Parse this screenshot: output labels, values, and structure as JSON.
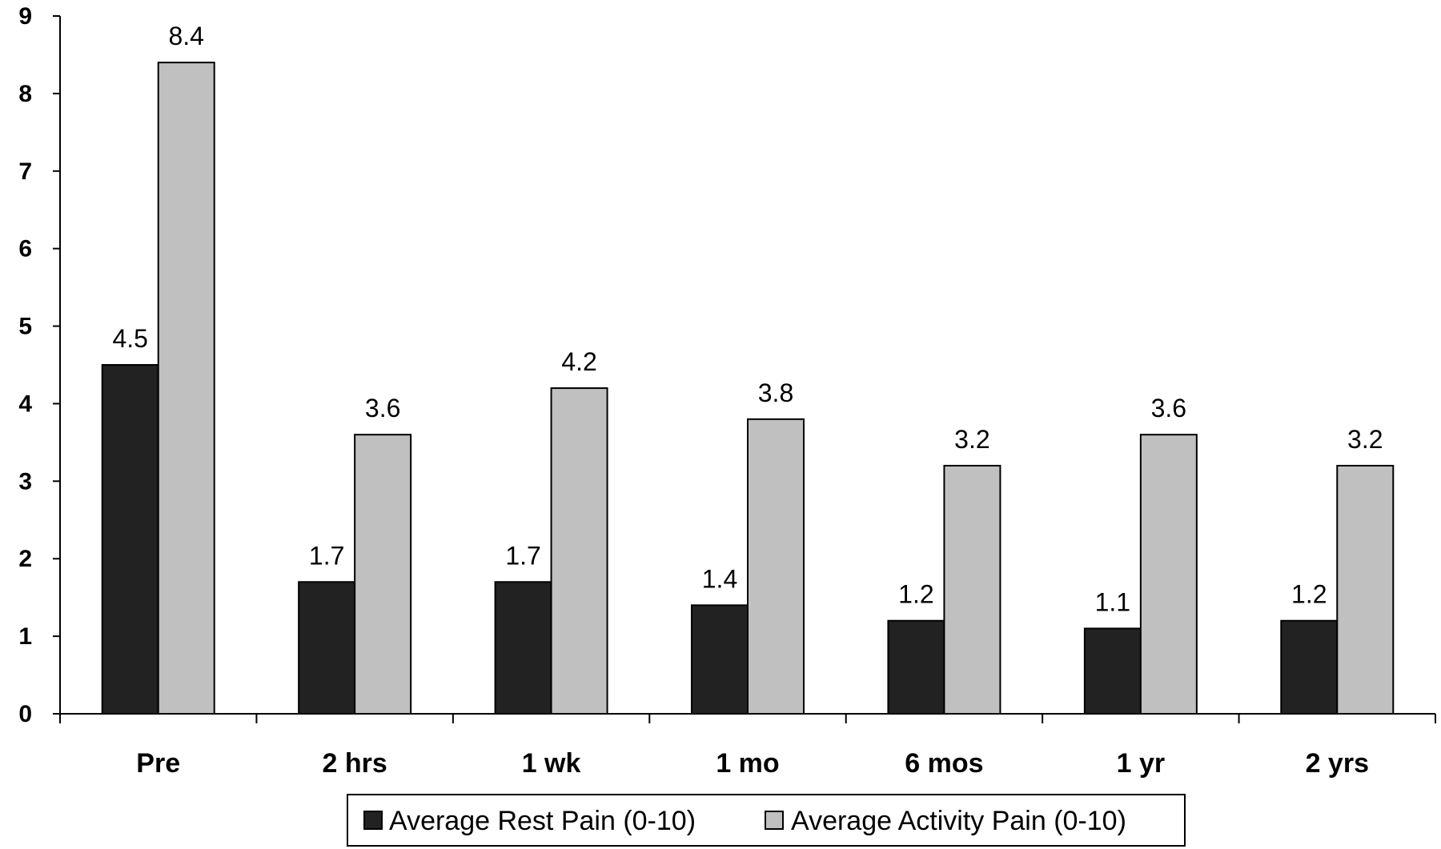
{
  "chart_data": {
    "type": "bar",
    "title": "",
    "xlabel": "",
    "ylabel": "",
    "categories": [
      "Pre",
      "2 hrs",
      "1 wk",
      "1 mo",
      "6 mos",
      "1 yr",
      "2 yrs"
    ],
    "series": [
      {
        "name": "Average Rest Pain (0-10)",
        "color": "#222222",
        "values": [
          4.5,
          1.7,
          1.7,
          1.4,
          1.2,
          1.1,
          1.2
        ],
        "labels": [
          "4.5",
          "1.7",
          "1.7",
          "1.4",
          "1.2",
          "1.1",
          "1.2"
        ]
      },
      {
        "name": "Average Activity Pain (0-10)",
        "color": "#c0c0c0",
        "values": [
          8.4,
          3.6,
          4.2,
          3.8,
          3.2,
          3.6,
          3.2
        ],
        "labels": [
          "8.4",
          "3.6",
          "4.2",
          "3.8",
          "3.2",
          "3.6",
          "3.2"
        ]
      }
    ],
    "ylim": [
      0,
      9
    ],
    "yticks": [
      0,
      1,
      2,
      3,
      4,
      5,
      6,
      7,
      8,
      9
    ],
    "ytick_labels": [
      "0",
      "1",
      "2",
      "3",
      "4",
      "5",
      "6",
      "7",
      "8",
      "9"
    ],
    "grid": false,
    "legend_position": "bottom-center",
    "axis_color": "#000000",
    "bar_outline_color": "#000000",
    "background_color": "#ffffff"
  }
}
